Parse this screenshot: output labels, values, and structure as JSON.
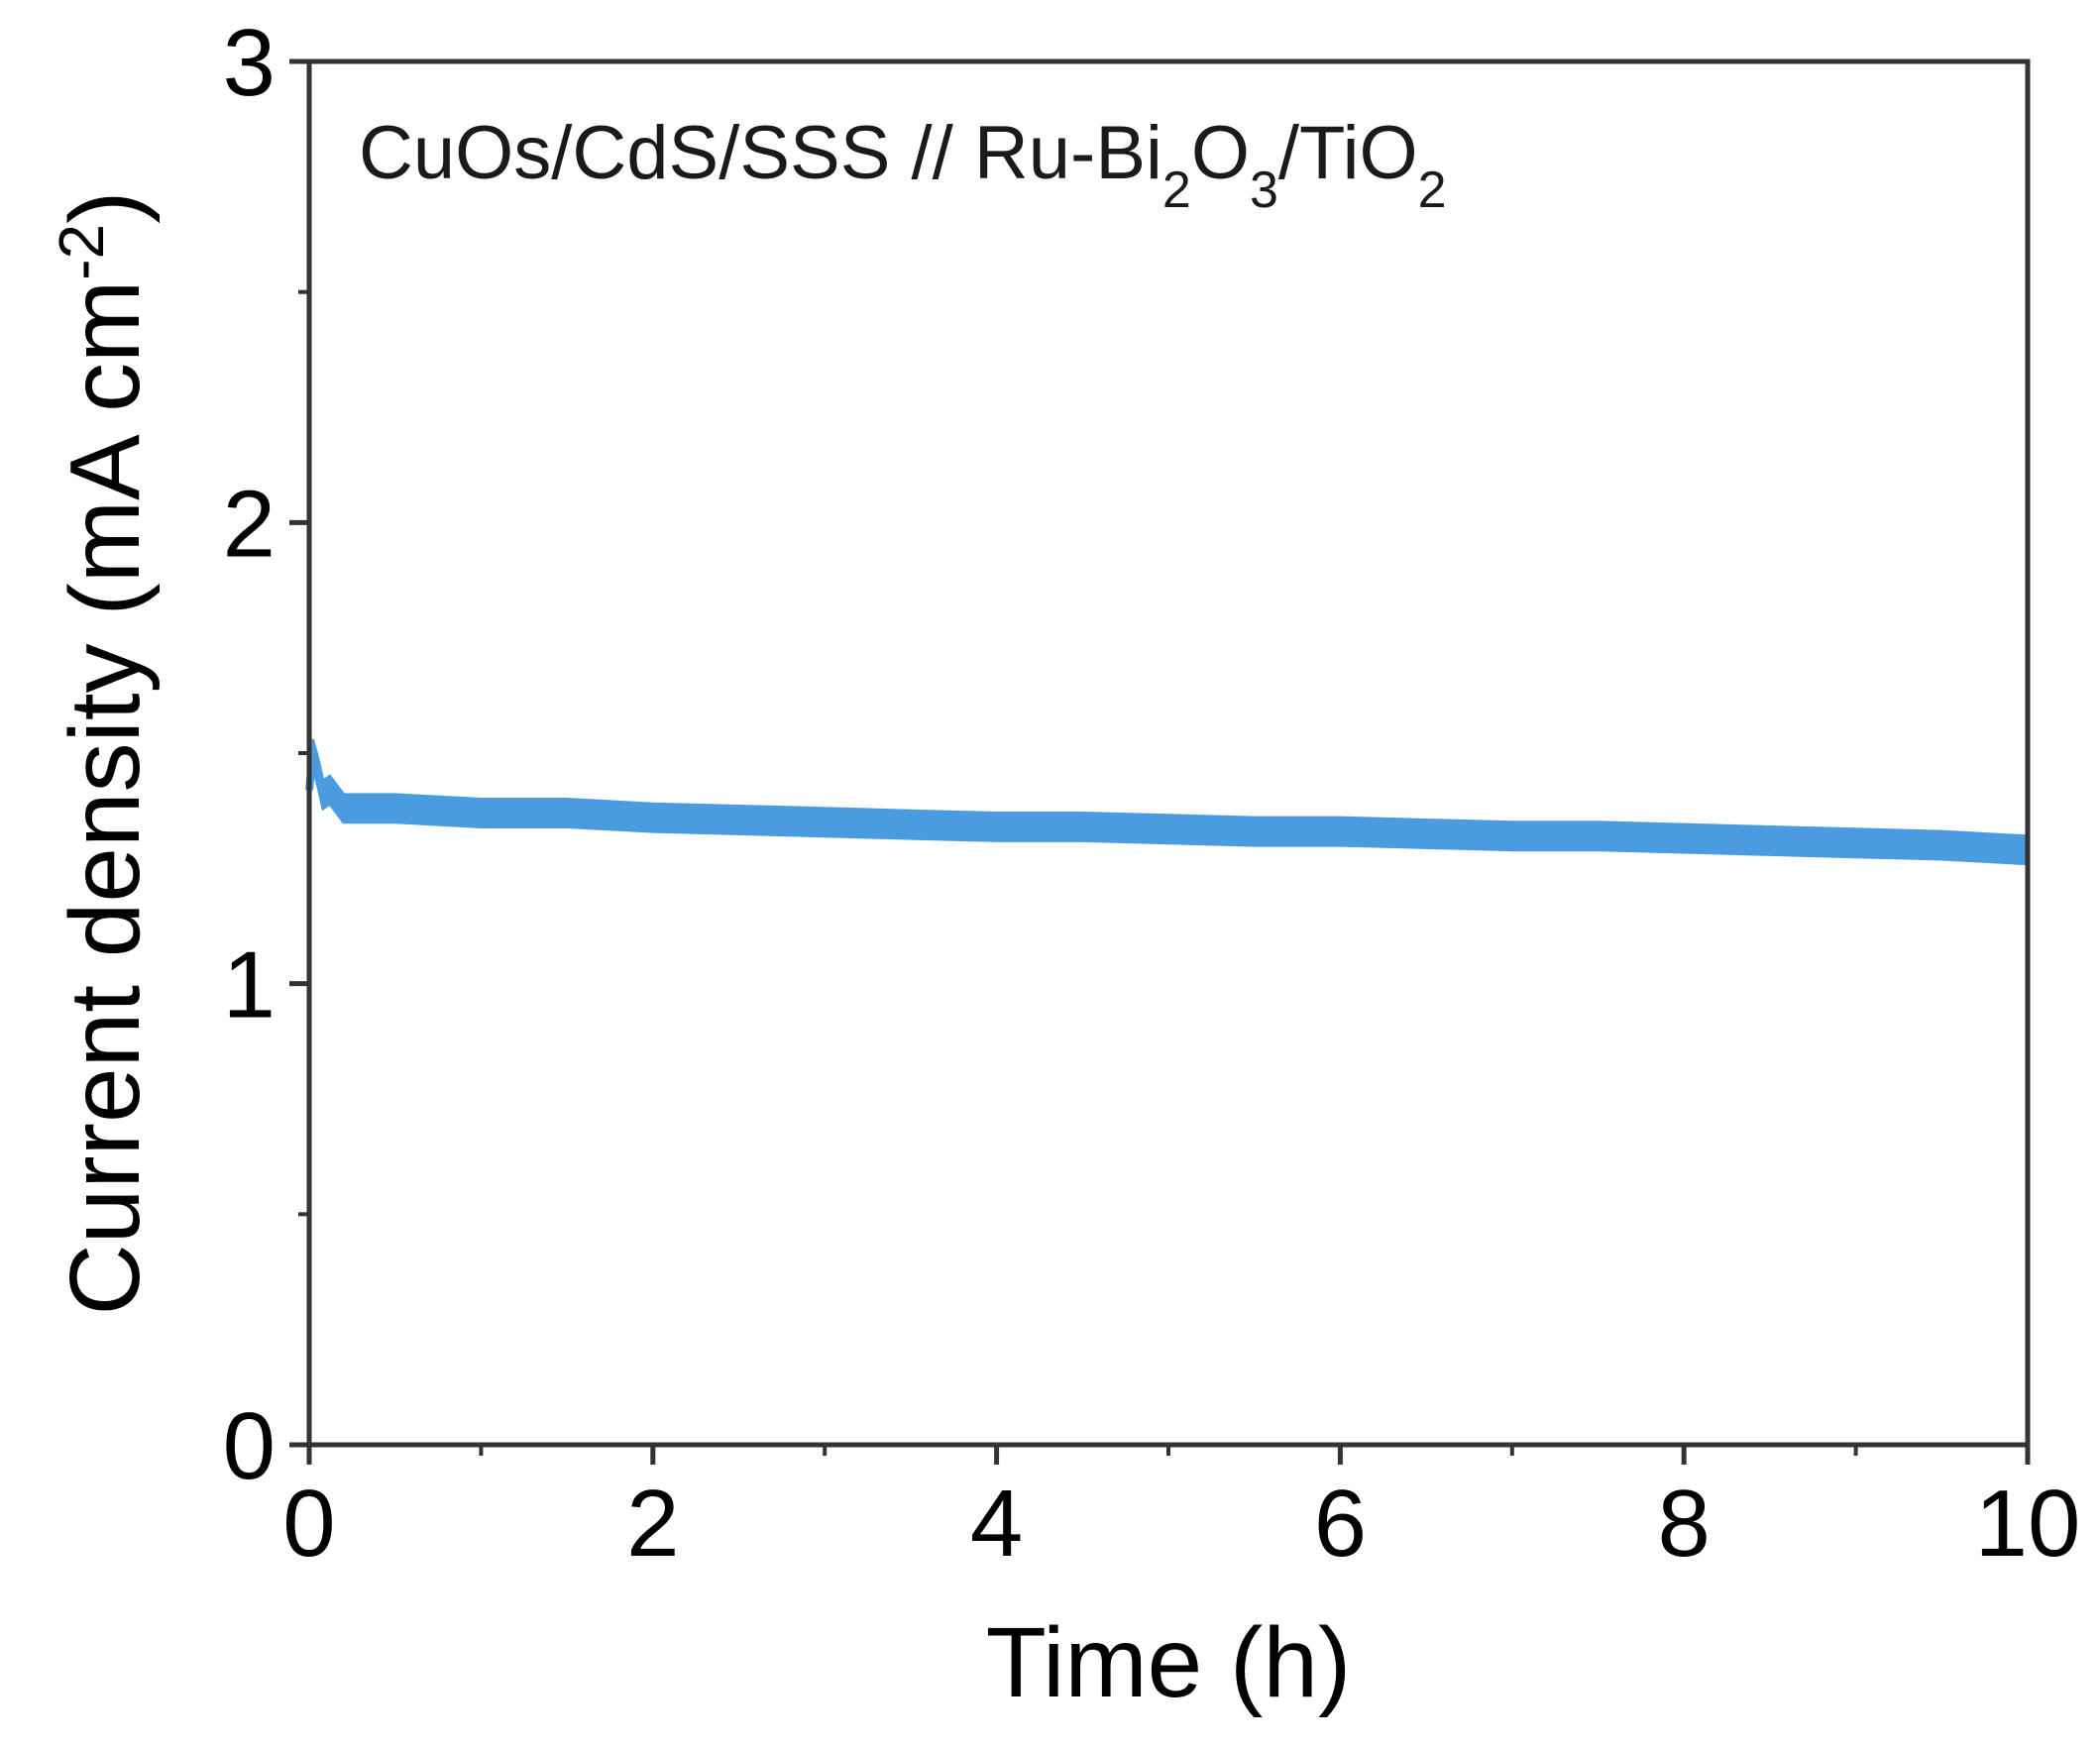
{
  "chart_data": {
    "type": "line",
    "xlabel": "Time (h)",
    "ylabel": "Current density (mA cm",
    "ylabel_sup": "-2",
    "ylabel_close": ")",
    "xlim": [
      0,
      10
    ],
    "ylim": [
      0,
      3
    ],
    "x_ticks": [
      "0",
      "2",
      "4",
      "6",
      "8",
      "10"
    ],
    "y_ticks": [
      "0",
      "1",
      "2",
      "3"
    ],
    "x_tick_values": [
      0,
      2,
      4,
      6,
      8,
      10
    ],
    "y_tick_values": [
      0,
      1,
      2,
      3
    ],
    "x_minor_step": 1,
    "y_minor_step": 0.5,
    "grid": false,
    "annotation": {
      "parts": [
        {
          "t": "CuOs/CdS/SSS  //  Ru-Bi",
          "sub": false
        },
        {
          "t": "2",
          "sub": true
        },
        {
          "t": "O",
          "sub": false
        },
        {
          "t": "3",
          "sub": true
        },
        {
          "t": "/TiO",
          "sub": false
        },
        {
          "t": "2",
          "sub": true
        }
      ]
    },
    "series": [
      {
        "color": "#4a9be0",
        "band": 0.06,
        "x": [
          0,
          0.02,
          0.05,
          0.08,
          0.12,
          0.2,
          0.3,
          0.5,
          1,
          1.5,
          2,
          2.5,
          3,
          3.5,
          4,
          4.5,
          5,
          5.5,
          6,
          6.5,
          7,
          7.5,
          8,
          8.5,
          9,
          9.5,
          10
        ],
        "values": [
          1.42,
          1.5,
          1.46,
          1.41,
          1.42,
          1.38,
          1.38,
          1.38,
          1.37,
          1.37,
          1.36,
          1.355,
          1.35,
          1.345,
          1.34,
          1.34,
          1.335,
          1.33,
          1.33,
          1.325,
          1.32,
          1.32,
          1.315,
          1.31,
          1.305,
          1.3,
          1.29
        ]
      }
    ]
  }
}
